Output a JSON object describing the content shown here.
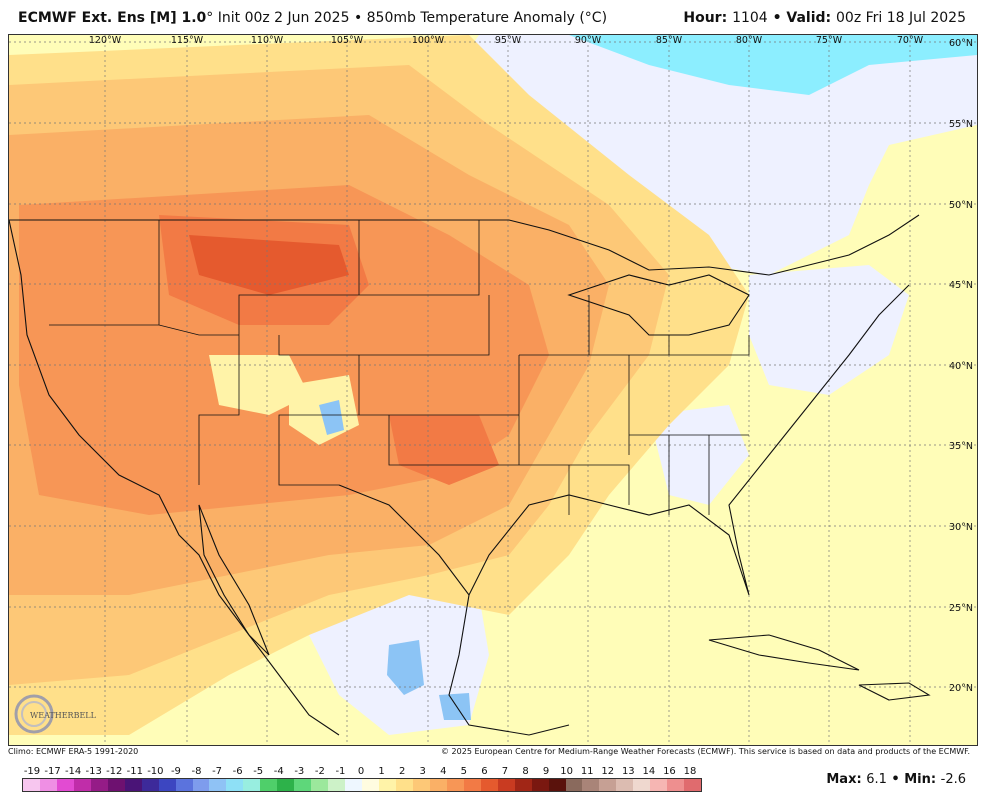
{
  "header": {
    "model": "ECMWF Ext. Ens [M] 1.0",
    "init": "° Init 00z 2 Jun 2025 • 850mb Temperature Anomaly (°C)",
    "hour_label": "Hour:",
    "hour_value": "1104",
    "valid_label": "• Valid:",
    "valid_value": "00z Fri 18 Jul 2025"
  },
  "map": {
    "lon_labels": [
      "120°W",
      "115°W",
      "110°W",
      "105°W",
      "100°W",
      "95°W",
      "90°W",
      "85°W",
      "80°W",
      "75°W",
      "70°W"
    ],
    "lat_labels": [
      "60°N",
      "55°N",
      "50°N",
      "45°N",
      "40°N",
      "35°N",
      "30°N",
      "25°N",
      "20°N"
    ],
    "colors": {
      "neutral": "#fffdb8",
      "a0": "#fff3a8",
      "a1": "#ffe08a",
      "a2": "#fdc877",
      "a3": "#fab066",
      "a4": "#f79656",
      "a5": "#f27a45",
      "a6": "#e55a2e",
      "n1": "#eef1ff",
      "n2": "#c9e0ff",
      "n3": "#8cc4f5",
      "n4": "#8ceeff"
    }
  },
  "footer": {
    "climo": "Climo: ECMWF ERA-5 1991-2020",
    "copyright": "© 2025 European Centre for Medium-Range Weather Forecasts (ECMWF). This service is based on data and products of the ECMWF.",
    "logo_text": "WEATHERBELL"
  },
  "legend": {
    "labels": [
      "-19",
      "-17",
      "-14",
      "-13",
      "-12",
      "-11",
      "-10",
      "-9",
      "-8",
      "-7",
      "-6",
      "-5",
      "-4",
      "-3",
      "-2",
      "-1",
      "0",
      "1",
      "2",
      "3",
      "4",
      "5",
      "6",
      "7",
      "8",
      "9",
      "10",
      "11",
      "12",
      "13",
      "14",
      "16",
      "18"
    ],
    "colors": [
      "#f7c6ef",
      "#ef8fe4",
      "#e24bd2",
      "#c02da9",
      "#951c87",
      "#6e1170",
      "#4a1477",
      "#3d2a9a",
      "#3c46c1",
      "#5b73dd",
      "#7e9ced",
      "#8fc2f5",
      "#8ee0f6",
      "#98eee0",
      "#4fcf6a",
      "#2db24a",
      "#5ed77a",
      "#9ce89c",
      "#cdf2c8",
      "#eef7ff",
      "#fffce0",
      "#fff3a8",
      "#ffe08a",
      "#fdc877",
      "#fab066",
      "#f79656",
      "#f27a45",
      "#e55a2e",
      "#c93b21",
      "#a12616",
      "#7a1810",
      "#5a120c",
      "#8a6a5d",
      "#a98478",
      "#c6a094",
      "#dcbcb1",
      "#efd8cf",
      "#f6b6b3",
      "#ee8f8f",
      "#e06b6e"
    ]
  },
  "stats": {
    "max_label": "Max:",
    "max_value": "6.1",
    "min_label": "• Min:",
    "min_value": "-2.6"
  }
}
